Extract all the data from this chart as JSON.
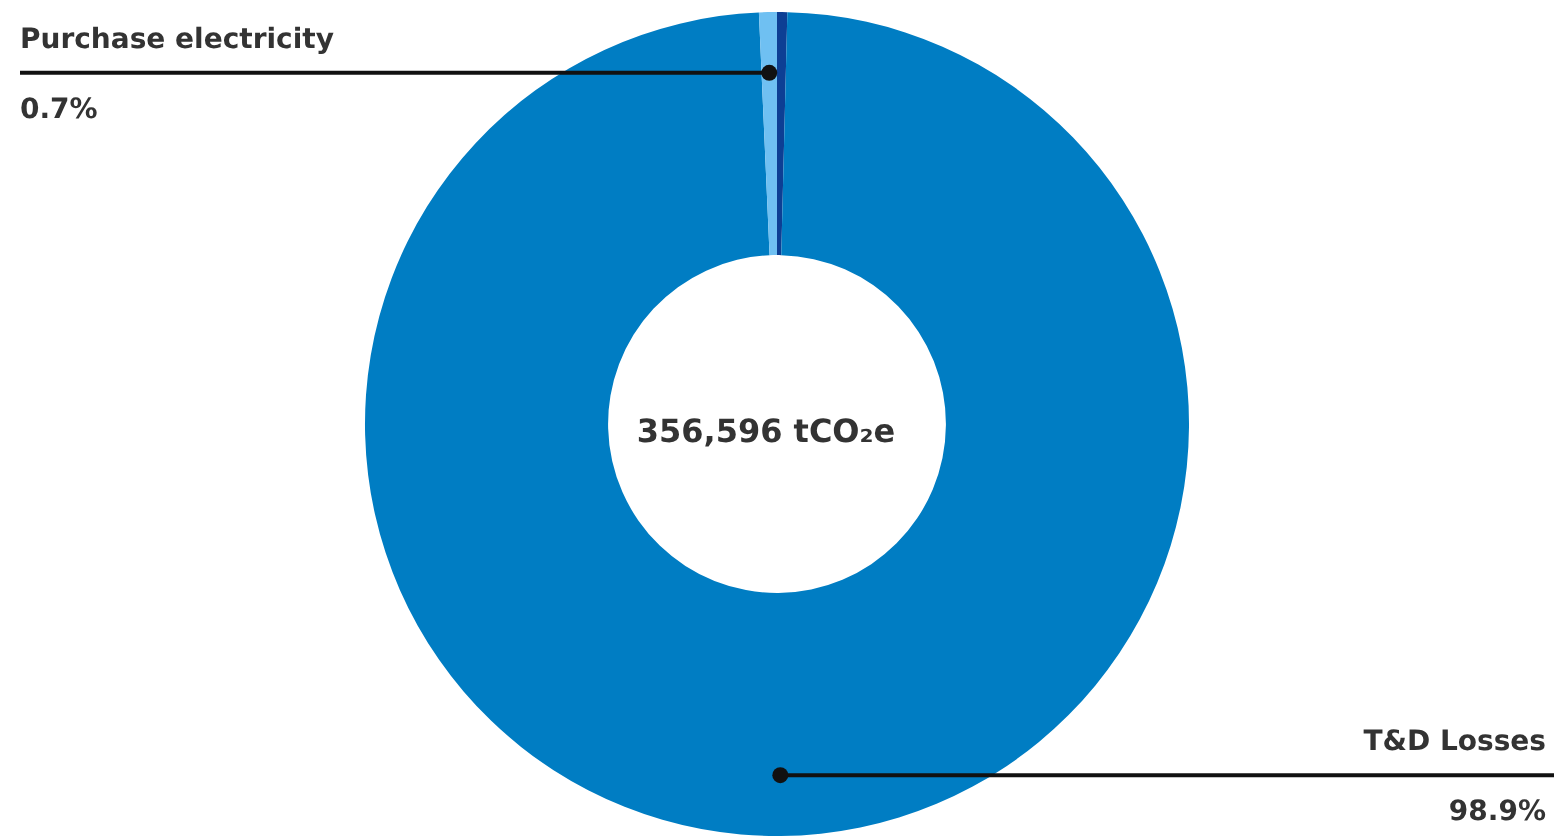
{
  "chart_data": {
    "type": "donut",
    "categories": [
      null,
      "T&D Losses",
      "Purchase electricity"
    ],
    "values": [
      0.4,
      98.9,
      0.7
    ],
    "value_labels": [
      null,
      "98.9%",
      "0.7%"
    ],
    "colors": [
      "#0d3f94",
      "#007dc3",
      "#6fc0f2"
    ],
    "annotations": [
      "356,596 tCO₂e"
    ],
    "legend": false
  }
}
